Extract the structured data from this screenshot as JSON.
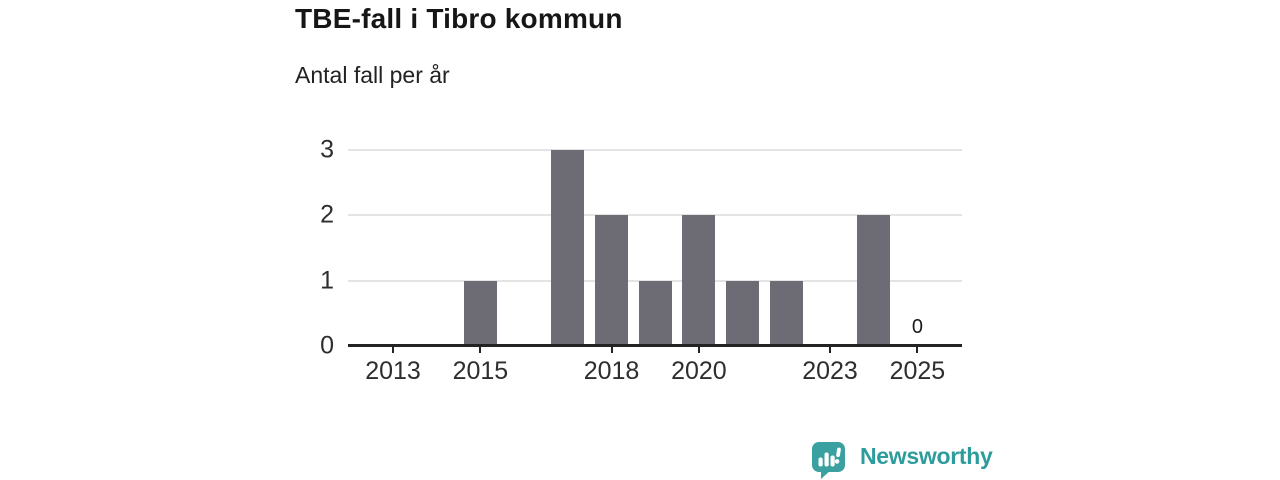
{
  "page": {
    "title": "TBE-fall i Tibro kommun",
    "subtitle": "Antal fall per år"
  },
  "chart_data": {
    "type": "bar",
    "title": "TBE-fall i Tibro kommun",
    "subtitle": "Antal fall per år",
    "xlabel": "",
    "ylabel": "Antal fall per år",
    "categories": [
      2013,
      2014,
      2015,
      2016,
      2017,
      2018,
      2019,
      2020,
      2021,
      2022,
      2023,
      2024,
      2025
    ],
    "values": [
      0,
      0,
      1,
      0,
      3,
      2,
      1,
      2,
      1,
      1,
      0,
      2,
      0
    ],
    "x_tick_years": [
      2013,
      2015,
      2018,
      2020,
      2023,
      2025
    ],
    "x_tick_labels": [
      "2013",
      "2015",
      "2018",
      "2020",
      "2023",
      "2025"
    ],
    "y_ticks": [
      0,
      1,
      2,
      3
    ],
    "ylim": [
      0,
      3
    ],
    "grid": "horizontal-light",
    "legend": "none",
    "bar_color": "#6d6c75",
    "annotations": [
      {
        "x": 2025,
        "text": "0"
      }
    ]
  },
  "branding": {
    "logo_text": "Newsworthy",
    "logo_icon": "newsworthy-speech-bubble-bar-chart-icon",
    "teal_icon": "#3aa0a0",
    "teal_text": "#2f9c9c"
  },
  "colors": {
    "bar": "#6d6c75",
    "axis": "#232323",
    "grid": "#e4e4e4",
    "title_text": "#161616",
    "tick_text": "#2e2e2e"
  }
}
